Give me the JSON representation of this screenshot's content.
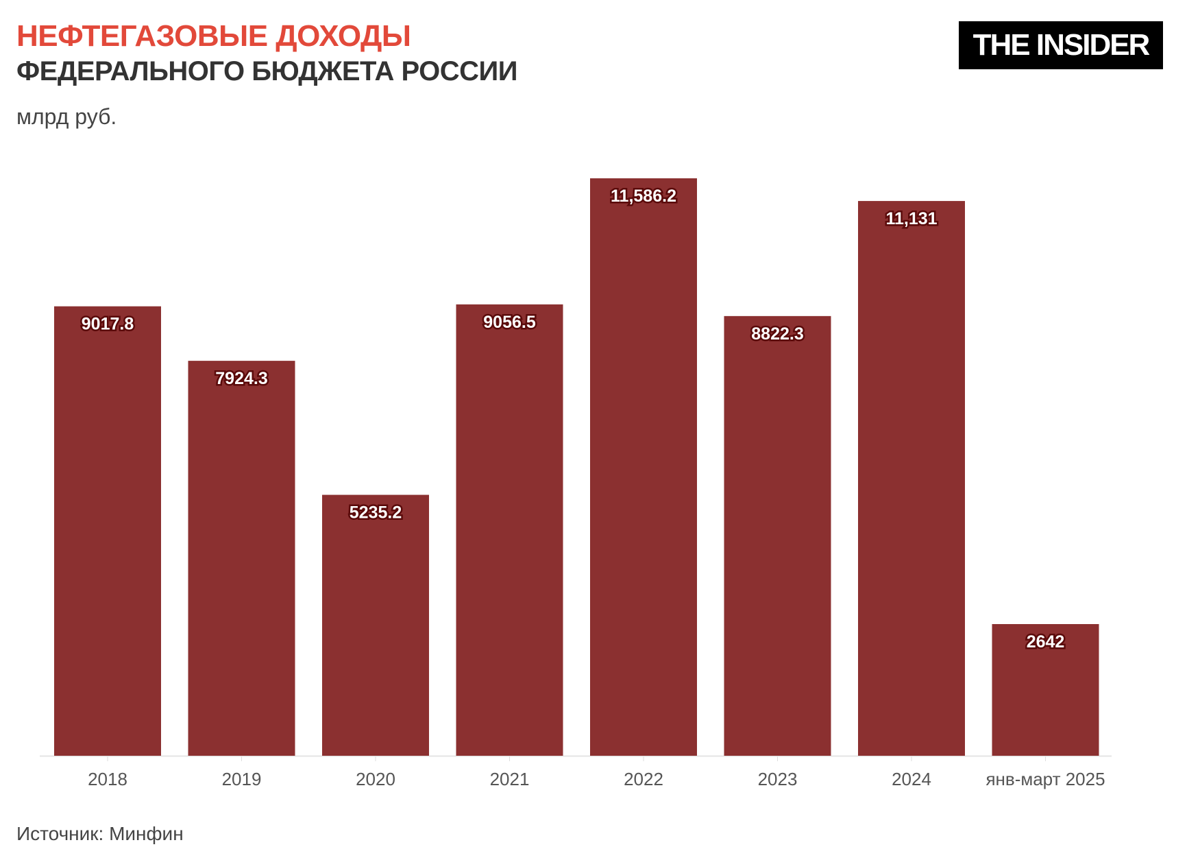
{
  "header": {
    "title_line1": "НЕФТЕГАЗОВЫЕ ДОХОДЫ",
    "title_line2": "ФЕДЕРАЛЬНОГО БЮДЖЕТА РОССИИ",
    "unit": "млрд руб.",
    "logo": "THE INSIDER"
  },
  "footer": {
    "source": "Источник: Минфин"
  },
  "colors": {
    "title": "#e2493a",
    "bar": "#8b3030",
    "text": "#333333"
  },
  "chart_data": {
    "type": "bar",
    "title": "НЕФТЕГАЗОВЫЕ ДОХОДЫ ФЕДЕРАЛЬНОГО БЮДЖЕТА РОССИИ",
    "ylabel": "млрд руб.",
    "categories": [
      "2018",
      "2019",
      "2020",
      "2021",
      "2022",
      "2023",
      "2024",
      "янв-март 2025"
    ],
    "values": [
      9017.8,
      7924.3,
      5235.2,
      9056.5,
      11586.2,
      8822.3,
      11131,
      2642
    ],
    "data_labels": [
      "9017.8",
      "7924.3",
      "5235.2",
      "9056.5",
      "11,586.2",
      "8822.3",
      "11,131",
      "2642"
    ],
    "ylim": [
      0,
      11586.2
    ],
    "grid": false,
    "legend": "none"
  }
}
